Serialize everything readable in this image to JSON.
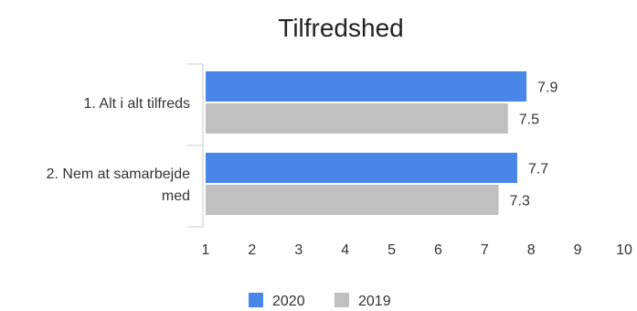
{
  "chart_data": {
    "type": "bar",
    "orientation": "horizontal",
    "title": "Tilfredshed",
    "xlabel": "",
    "ylabel": "",
    "xlim": [
      1,
      10
    ],
    "ticks": [
      "1",
      "2",
      "3",
      "4",
      "5",
      "6",
      "7",
      "8",
      "9",
      "10"
    ],
    "categories": [
      {
        "lines": [
          "1. Alt i alt tilfreds"
        ]
      },
      {
        "lines": [
          "2. Nem at samarbejde",
          "med"
        ]
      }
    ],
    "series": [
      {
        "name": "2020",
        "color": "#4a86e8",
        "values": [
          7.9,
          7.7
        ],
        "labels": [
          "7.9",
          "7.7"
        ]
      },
      {
        "name": "2019",
        "color": "#c0c0c0",
        "values": [
          7.5,
          7.3
        ],
        "labels": [
          "7.5",
          "7.3"
        ]
      }
    ],
    "legend_position": "bottom",
    "grid": false
  }
}
